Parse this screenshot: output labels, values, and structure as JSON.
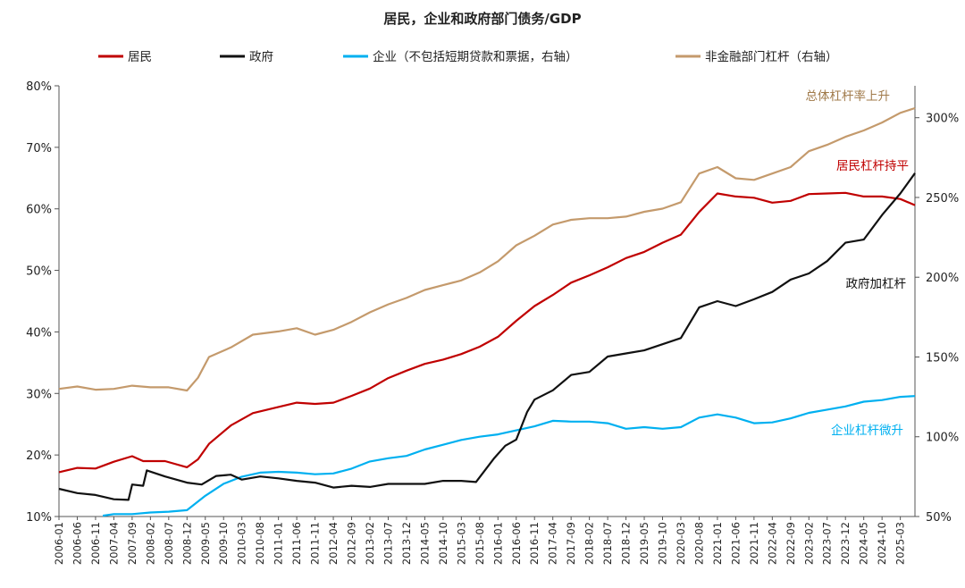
{
  "chart_data": {
    "type": "line",
    "title": "居民，企业和政府部门债务/GDP",
    "x_labels": [
      "2006-01",
      "2006-06",
      "2006-11",
      "2007-04",
      "2007-09",
      "2008-02",
      "2008-07",
      "2008-12",
      "2009-05",
      "2009-10",
      "2010-03",
      "2010-08",
      "2011-01",
      "2011-06",
      "2011-11",
      "2012-04",
      "2012-09",
      "2013-02",
      "2013-07",
      "2013-12",
      "2014-05",
      "2014-10",
      "2015-03",
      "2015-08",
      "2016-01",
      "2016-06",
      "2016-11",
      "2017-04",
      "2017-09",
      "2018-02",
      "2018-07",
      "2018-12",
      "2019-05",
      "2019-10",
      "2020-03",
      "2020-08",
      "2021-01",
      "2021-06",
      "2021-11",
      "2022-04",
      "2022-09",
      "2023-02",
      "2023-07",
      "2023-12",
      "2024-05",
      "2024-10",
      "2025-03"
    ],
    "x_start": "2006-01",
    "x_end": "2025-07",
    "left_axis": {
      "min": 10,
      "max": 80,
      "ticks": [
        "10%",
        "20%",
        "30%",
        "40%",
        "50%",
        "60%",
        "70%",
        "80%"
      ],
      "tick_values": [
        10,
        20,
        30,
        40,
        50,
        60,
        70,
        80
      ]
    },
    "right_axis": {
      "min": 50,
      "max": 320,
      "ticks": [
        "50%",
        "100%",
        "150%",
        "200%",
        "250%",
        "300%"
      ],
      "tick_values": [
        50,
        100,
        150,
        200,
        250,
        300
      ]
    },
    "series": [
      {
        "name": "居民",
        "axis": "left",
        "color": "#C00000",
        "points": [
          [
            "2006-01",
            17.2
          ],
          [
            "2006-06",
            17.9
          ],
          [
            "2006-11",
            17.8
          ],
          [
            "2007-04",
            18.9
          ],
          [
            "2007-09",
            19.8
          ],
          [
            "2007-12",
            19.0
          ],
          [
            "2008-06",
            19.0
          ],
          [
            "2008-12",
            18.0
          ],
          [
            "2009-03",
            19.3
          ],
          [
            "2009-06",
            21.8
          ],
          [
            "2009-12",
            24.8
          ],
          [
            "2010-06",
            26.8
          ],
          [
            "2011-01",
            27.8
          ],
          [
            "2011-06",
            28.5
          ],
          [
            "2011-11",
            28.3
          ],
          [
            "2012-04",
            28.5
          ],
          [
            "2012-09",
            29.6
          ],
          [
            "2013-02",
            30.8
          ],
          [
            "2013-07",
            32.5
          ],
          [
            "2013-12",
            33.7
          ],
          [
            "2014-05",
            34.8
          ],
          [
            "2014-10",
            35.5
          ],
          [
            "2015-03",
            36.4
          ],
          [
            "2015-08",
            37.6
          ],
          [
            "2016-01",
            39.2
          ],
          [
            "2016-06",
            41.8
          ],
          [
            "2016-11",
            44.2
          ],
          [
            "2017-04",
            46.0
          ],
          [
            "2017-09",
            48.0
          ],
          [
            "2018-02",
            49.2
          ],
          [
            "2018-07",
            50.5
          ],
          [
            "2018-12",
            52.0
          ],
          [
            "2019-05",
            53.0
          ],
          [
            "2019-10",
            54.5
          ],
          [
            "2020-03",
            55.8
          ],
          [
            "2020-08",
            59.5
          ],
          [
            "2021-01",
            62.5
          ],
          [
            "2021-06",
            62.0
          ],
          [
            "2021-11",
            61.8
          ],
          [
            "2022-04",
            61.0
          ],
          [
            "2022-09",
            61.3
          ],
          [
            "2023-02",
            62.4
          ],
          [
            "2023-07",
            62.5
          ],
          [
            "2023-12",
            62.6
          ],
          [
            "2024-05",
            62.0
          ],
          [
            "2024-10",
            62.0
          ],
          [
            "2025-03",
            61.6
          ],
          [
            "2025-07",
            60.6
          ]
        ]
      },
      {
        "name": "政府",
        "axis": "left",
        "color": "#111111",
        "points": [
          [
            "2006-01",
            14.5
          ],
          [
            "2006-06",
            13.8
          ],
          [
            "2006-11",
            13.5
          ],
          [
            "2007-04",
            12.8
          ],
          [
            "2007-08",
            12.7
          ],
          [
            "2007-09",
            15.2
          ],
          [
            "2007-12",
            15.0
          ],
          [
            "2008-01",
            17.5
          ],
          [
            "2008-06",
            16.5
          ],
          [
            "2008-12",
            15.5
          ],
          [
            "2009-04",
            15.2
          ],
          [
            "2009-08",
            16.6
          ],
          [
            "2009-12",
            16.8
          ],
          [
            "2010-03",
            16.0
          ],
          [
            "2010-08",
            16.5
          ],
          [
            "2011-01",
            16.2
          ],
          [
            "2011-06",
            15.8
          ],
          [
            "2011-11",
            15.5
          ],
          [
            "2012-04",
            14.7
          ],
          [
            "2012-09",
            15.0
          ],
          [
            "2013-02",
            14.8
          ],
          [
            "2013-07",
            15.3
          ],
          [
            "2013-12",
            15.3
          ],
          [
            "2014-05",
            15.3
          ],
          [
            "2014-10",
            15.8
          ],
          [
            "2015-03",
            15.8
          ],
          [
            "2015-07",
            15.6
          ],
          [
            "2015-12",
            19.5
          ],
          [
            "2016-03",
            21.5
          ],
          [
            "2016-06",
            22.5
          ],
          [
            "2016-09",
            27.0
          ],
          [
            "2016-11",
            29.0
          ],
          [
            "2017-04",
            30.5
          ],
          [
            "2017-09",
            33.0
          ],
          [
            "2018-02",
            33.5
          ],
          [
            "2018-07",
            36.0
          ],
          [
            "2018-12",
            36.5
          ],
          [
            "2019-05",
            37.0
          ],
          [
            "2019-10",
            38.0
          ],
          [
            "2020-03",
            39.0
          ],
          [
            "2020-08",
            44.0
          ],
          [
            "2021-01",
            45.0
          ],
          [
            "2021-06",
            44.2
          ],
          [
            "2021-11",
            45.3
          ],
          [
            "2022-04",
            46.5
          ],
          [
            "2022-09",
            48.5
          ],
          [
            "2023-02",
            49.5
          ],
          [
            "2023-07",
            51.5
          ],
          [
            "2023-12",
            54.5
          ],
          [
            "2024-05",
            55.0
          ],
          [
            "2024-10",
            59.0
          ],
          [
            "2025-03",
            62.5
          ],
          [
            "2025-07",
            65.8
          ]
        ]
      },
      {
        "name": "企业（不包括短期贷款和票据，右轴）",
        "axis": "right",
        "color": "#00B0F0",
        "points": [
          [
            "2007-01",
            50.5
          ],
          [
            "2007-04",
            51.5
          ],
          [
            "2007-09",
            51.5
          ],
          [
            "2008-02",
            52.5
          ],
          [
            "2008-07",
            53.0
          ],
          [
            "2008-12",
            54.0
          ],
          [
            "2009-05",
            63.0
          ],
          [
            "2009-10",
            70.5
          ],
          [
            "2010-03",
            75.0
          ],
          [
            "2010-08",
            77.5
          ],
          [
            "2011-01",
            78.0
          ],
          [
            "2011-06",
            77.5
          ],
          [
            "2011-11",
            76.5
          ],
          [
            "2012-04",
            77.0
          ],
          [
            "2012-09",
            80.0
          ],
          [
            "2013-02",
            84.5
          ],
          [
            "2013-07",
            86.5
          ],
          [
            "2013-12",
            88.0
          ],
          [
            "2014-05",
            92.0
          ],
          [
            "2014-10",
            95.0
          ],
          [
            "2015-03",
            98.0
          ],
          [
            "2015-08",
            100.0
          ],
          [
            "2016-01",
            101.5
          ],
          [
            "2016-06",
            104.0
          ],
          [
            "2016-11",
            106.5
          ],
          [
            "2017-04",
            110.0
          ],
          [
            "2017-09",
            109.5
          ],
          [
            "2018-02",
            109.5
          ],
          [
            "2018-07",
            108.5
          ],
          [
            "2018-12",
            105.0
          ],
          [
            "2019-05",
            106.0
          ],
          [
            "2019-10",
            105.0
          ],
          [
            "2020-03",
            106.0
          ],
          [
            "2020-08",
            112.0
          ],
          [
            "2021-01",
            114.0
          ],
          [
            "2021-06",
            112.0
          ],
          [
            "2021-11",
            108.5
          ],
          [
            "2022-04",
            109.0
          ],
          [
            "2022-09",
            111.5
          ],
          [
            "2023-02",
            115.0
          ],
          [
            "2023-07",
            117.0
          ],
          [
            "2023-12",
            119.0
          ],
          [
            "2024-05",
            122.0
          ],
          [
            "2024-10",
            123.0
          ],
          [
            "2025-03",
            125.0
          ],
          [
            "2025-07",
            125.5
          ]
        ]
      },
      {
        "name": "非金融部门杠杆（右轴）",
        "axis": "right",
        "color": "#C49A6C",
        "points": [
          [
            "2006-01",
            130.0
          ],
          [
            "2006-06",
            131.5
          ],
          [
            "2006-11",
            129.5
          ],
          [
            "2007-04",
            130.0
          ],
          [
            "2007-09",
            132.0
          ],
          [
            "2008-02",
            131.0
          ],
          [
            "2008-07",
            131.0
          ],
          [
            "2008-12",
            129.0
          ],
          [
            "2009-03",
            137.0
          ],
          [
            "2009-06",
            150.0
          ],
          [
            "2009-12",
            156.0
          ],
          [
            "2010-06",
            164.0
          ],
          [
            "2011-01",
            166.0
          ],
          [
            "2011-06",
            168.0
          ],
          [
            "2011-11",
            164.0
          ],
          [
            "2012-04",
            167.0
          ],
          [
            "2012-09",
            172.0
          ],
          [
            "2013-02",
            178.0
          ],
          [
            "2013-07",
            183.0
          ],
          [
            "2013-12",
            187.0
          ],
          [
            "2014-05",
            192.0
          ],
          [
            "2014-10",
            195.0
          ],
          [
            "2015-03",
            198.0
          ],
          [
            "2015-08",
            203.0
          ],
          [
            "2016-01",
            210.0
          ],
          [
            "2016-06",
            220.0
          ],
          [
            "2016-11",
            226.0
          ],
          [
            "2017-04",
            233.0
          ],
          [
            "2017-09",
            236.0
          ],
          [
            "2018-02",
            237.0
          ],
          [
            "2018-07",
            237.0
          ],
          [
            "2018-12",
            238.0
          ],
          [
            "2019-05",
            241.0
          ],
          [
            "2019-10",
            243.0
          ],
          [
            "2020-03",
            247.0
          ],
          [
            "2020-08",
            265.0
          ],
          [
            "2021-01",
            269.0
          ],
          [
            "2021-06",
            262.0
          ],
          [
            "2021-11",
            261.0
          ],
          [
            "2022-04",
            265.0
          ],
          [
            "2022-09",
            269.0
          ],
          [
            "2023-02",
            279.0
          ],
          [
            "2023-07",
            283.0
          ],
          [
            "2023-12",
            288.0
          ],
          [
            "2024-05",
            292.0
          ],
          [
            "2024-10",
            297.0
          ],
          [
            "2025-03",
            303.0
          ],
          [
            "2025-07",
            306.0
          ]
        ]
      }
    ],
    "annotations": [
      {
        "text": "总体杠杆率上升",
        "color": "#A07A4A"
      },
      {
        "text": "居民杠杆持平",
        "color": "#C00000"
      },
      {
        "text": "政府加杠杆",
        "color": "#111111"
      },
      {
        "text": "企业杠杆微升",
        "color": "#00B0F0"
      }
    ],
    "legend_position": "top"
  }
}
